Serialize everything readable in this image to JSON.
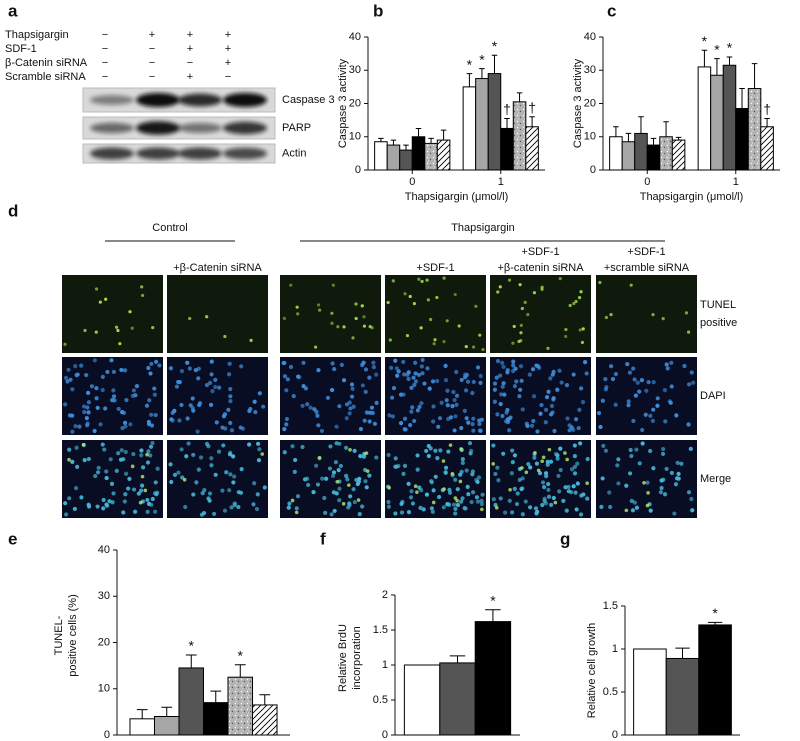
{
  "blot": {
    "letter": "a",
    "conditions": [
      "Thapsigargin",
      "SDF-1",
      "β-Catenin siRNA",
      "Scramble siRNA"
    ],
    "signs": [
      [
        "−",
        "+",
        "+",
        "+"
      ],
      [
        "−",
        "−",
        "+",
        "+"
      ],
      [
        "−",
        "−",
        "−",
        "+"
      ],
      [
        "−",
        "−",
        "+",
        "−"
      ]
    ],
    "bands": [
      "Caspase 3",
      "PARP",
      "Actin"
    ]
  },
  "microscopy": {
    "letter": "d",
    "group_labels": [
      "Control",
      "Thapsigargin"
    ],
    "column_labels": [
      [
        "+β-Catenin siRNA"
      ],
      [
        "+SDF-1"
      ],
      [
        "+SDF-1",
        "+β-catenin siRNA"
      ],
      [
        "+SDF-1",
        "+scramble siRNA"
      ]
    ],
    "row_labels": [
      [
        "TUNEL",
        "positive"
      ],
      [
        "DAPI"
      ],
      [
        "Merge"
      ]
    ]
  },
  "chart_data": [
    {
      "type": "bar",
      "panel": "b",
      "ylabel": "Caspase 3 activity",
      "xlabel": "Thapsigargin (μmol/l)",
      "categories": [
        "0",
        "1"
      ],
      "ylim": [
        0,
        40
      ],
      "yticks": [
        0,
        10,
        20,
        30,
        40
      ],
      "series": [
        {
          "color": "#ffffff",
          "values": [
            8.5,
            25
          ],
          "errors": [
            1,
            4
          ],
          "markers": [
            null,
            "*"
          ]
        },
        {
          "color": "#a6a6a6",
          "values": [
            7.5,
            27.5
          ],
          "errors": [
            1.5,
            3
          ],
          "markers": [
            null,
            "*"
          ]
        },
        {
          "color": "#555555",
          "values": [
            6,
            29
          ],
          "errors": [
            1.5,
            5.5
          ],
          "markers": [
            null,
            "*"
          ]
        },
        {
          "color": "#000000",
          "values": [
            10,
            12.5
          ],
          "errors": [
            2.5,
            3
          ],
          "markers": [
            null,
            "†"
          ]
        },
        {
          "color": "#b3b3b3",
          "speckle": true,
          "values": [
            8,
            20.5
          ],
          "errors": [
            1.5,
            2.7
          ]
        },
        {
          "color": "#ffffff",
          "hatch": true,
          "values": [
            9,
            13
          ],
          "errors": [
            3,
            3
          ],
          "markers": [
            null,
            "†"
          ]
        }
      ]
    },
    {
      "type": "bar",
      "panel": "c",
      "ylabel": "Caspase 3 activity",
      "xlabel": "Thapsigargin (μmol/l)",
      "categories": [
        "0",
        "1"
      ],
      "ylim": [
        0,
        40
      ],
      "yticks": [
        0,
        10,
        20,
        30,
        40
      ],
      "series": [
        {
          "color": "#ffffff",
          "values": [
            10,
            31
          ],
          "errors": [
            3,
            5
          ],
          "markers": [
            null,
            "*"
          ]
        },
        {
          "color": "#a6a6a6",
          "values": [
            8.5,
            28.5
          ],
          "errors": [
            2.5,
            5
          ],
          "markers": [
            null,
            "*"
          ]
        },
        {
          "color": "#555555",
          "values": [
            11,
            31.5
          ],
          "errors": [
            5,
            2.5
          ],
          "markers": [
            null,
            "*"
          ]
        },
        {
          "color": "#000000",
          "values": [
            7.5,
            18.5
          ],
          "errors": [
            2,
            6
          ]
        },
        {
          "color": "#b3b3b3",
          "speckle": true,
          "values": [
            10,
            24.5
          ],
          "errors": [
            4.5,
            7.5
          ]
        },
        {
          "color": "#ffffff",
          "hatch": true,
          "values": [
            9,
            13
          ],
          "errors": [
            0.8,
            2.5
          ],
          "markers": [
            null,
            "†"
          ]
        }
      ]
    },
    {
      "type": "bar",
      "panel": "e",
      "ylabel": [
        "TUNEL-",
        "positive cells (%)"
      ],
      "ylim": [
        0,
        40
      ],
      "yticks": [
        0,
        10,
        20,
        30,
        40
      ],
      "series": [
        {
          "color": "#ffffff",
          "values": [
            3.5
          ],
          "errors": [
            2
          ]
        },
        {
          "color": "#a6a6a6",
          "values": [
            4
          ],
          "errors": [
            2
          ]
        },
        {
          "color": "#555555",
          "values": [
            14.5
          ],
          "errors": [
            2.8
          ],
          "markers": [
            "*"
          ]
        },
        {
          "color": "#000000",
          "values": [
            7
          ],
          "errors": [
            2.5
          ]
        },
        {
          "color": "#b3b3b3",
          "speckle": true,
          "values": [
            12.5
          ],
          "errors": [
            2.7
          ],
          "markers": [
            "*"
          ]
        },
        {
          "color": "#ffffff",
          "hatch": true,
          "values": [
            6.5
          ],
          "errors": [
            2.2
          ]
        }
      ]
    },
    {
      "type": "bar",
      "panel": "f",
      "ylabel": [
        "Relative BrdU",
        "incorporation"
      ],
      "ylim": [
        0,
        2
      ],
      "yticks": [
        0,
        0.5,
        1,
        1.5,
        2
      ],
      "series": [
        {
          "color": "#ffffff",
          "values": [
            1
          ]
        },
        {
          "color": "#555555",
          "values": [
            1.03
          ],
          "errors": [
            0.1
          ]
        },
        {
          "color": "#000000",
          "values": [
            1.62
          ],
          "errors": [
            0.17
          ],
          "markers": [
            "*"
          ]
        }
      ]
    },
    {
      "type": "bar",
      "panel": "g",
      "ylabel": "Relative cell growth",
      "ylim": [
        0,
        1.5
      ],
      "yticks": [
        0,
        0.5,
        1,
        1.5
      ],
      "series": [
        {
          "color": "#ffffff",
          "values": [
            1
          ]
        },
        {
          "color": "#555555",
          "values": [
            0.89
          ],
          "errors": [
            0.12
          ]
        },
        {
          "color": "#000000",
          "values": [
            1.28
          ],
          "errors": [
            0.03
          ],
          "markers": [
            "*"
          ]
        }
      ]
    }
  ]
}
